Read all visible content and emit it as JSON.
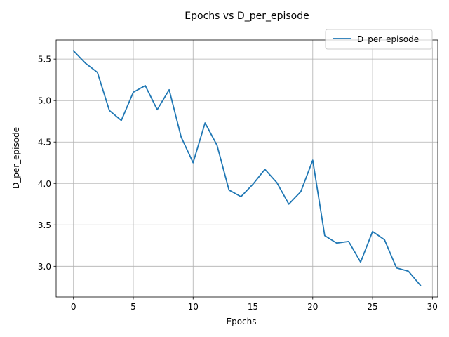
{
  "chart_data": {
    "type": "line",
    "title": "Epochs vs D_per_episode",
    "xlabel": "Epochs",
    "ylabel": "D_per_episode",
    "xlim": [
      -1.45,
      30.45
    ],
    "ylim": [
      2.63,
      5.73
    ],
    "xticks": [
      0,
      5,
      10,
      15,
      20,
      25,
      30
    ],
    "xtick_labels": [
      "0",
      "5",
      "10",
      "15",
      "20",
      "25",
      "30"
    ],
    "yticks": [
      3.0,
      3.5,
      4.0,
      4.5,
      5.0,
      5.5
    ],
    "ytick_labels": [
      "3.0",
      "3.5",
      "4.0",
      "4.5",
      "5.0",
      "5.5"
    ],
    "grid": true,
    "legend_position": "top-right",
    "series": [
      {
        "name": "D_per_episode",
        "color": "#1f77b4",
        "x": [
          0,
          1,
          2,
          3,
          4,
          5,
          6,
          7,
          8,
          9,
          10,
          11,
          12,
          13,
          14,
          15,
          16,
          17,
          18,
          19,
          20,
          21,
          22,
          23,
          24,
          25,
          26,
          27,
          28,
          29
        ],
        "values": [
          5.6,
          5.45,
          5.34,
          4.88,
          4.76,
          5.1,
          5.18,
          4.89,
          5.13,
          4.56,
          4.25,
          4.73,
          4.46,
          3.92,
          3.84,
          3.99,
          4.17,
          4.01,
          3.75,
          3.9,
          4.28,
          3.37,
          3.28,
          3.3,
          3.05,
          3.42,
          3.32,
          2.98,
          2.94,
          2.77
        ]
      }
    ]
  }
}
